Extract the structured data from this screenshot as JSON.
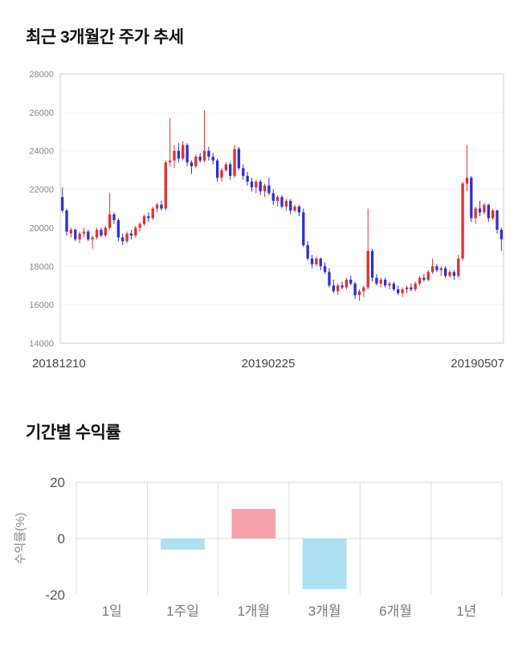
{
  "page": {
    "background": "#ffffff"
  },
  "chart_data": [
    {
      "type": "candlestick",
      "title": "최근 3개월간 주가 추세",
      "ylim": [
        14000,
        28000
      ],
      "y_ticks": [
        14000,
        16000,
        18000,
        20000,
        22000,
        24000,
        26000,
        28000
      ],
      "x_labels": [
        "20181210",
        "20190225",
        "20190507"
      ],
      "up_color": "#e03131",
      "down_color": "#2f2fd0",
      "grid": true,
      "ohlc": [
        [
          21600,
          22100,
          20800,
          20900
        ],
        [
          20900,
          21000,
          19600,
          19800
        ],
        [
          19700,
          20000,
          19500,
          19900
        ],
        [
          19900,
          19950,
          19300,
          19400
        ],
        [
          19400,
          19800,
          19200,
          19700
        ],
        [
          19700,
          20000,
          19500,
          19800
        ],
        [
          19800,
          19900,
          19300,
          19400
        ],
        [
          19400,
          19600,
          18900,
          19500
        ],
        [
          19500,
          20000,
          19400,
          19900
        ],
        [
          19900,
          20000,
          19500,
          19600
        ],
        [
          19600,
          20100,
          19500,
          20000
        ],
        [
          20000,
          21800,
          19900,
          20700
        ],
        [
          20700,
          20800,
          20200,
          20400
        ],
        [
          20400,
          20500,
          19300,
          19500
        ],
        [
          19500,
          19700,
          19100,
          19300
        ],
        [
          19300,
          19800,
          19200,
          19700
        ],
        [
          19700,
          19900,
          19400,
          19600
        ],
        [
          19600,
          20100,
          19500,
          20000
        ],
        [
          20000,
          20300,
          19800,
          20200
        ],
        [
          20200,
          20700,
          20100,
          20600
        ],
        [
          20600,
          20800,
          20300,
          20500
        ],
        [
          20500,
          21100,
          20400,
          21000
        ],
        [
          21000,
          21300,
          20800,
          21200
        ],
        [
          21200,
          21400,
          20900,
          21000
        ],
        [
          21000,
          23500,
          20900,
          23400
        ],
        [
          23400,
          25700,
          23200,
          23500
        ],
        [
          23500,
          24300,
          23100,
          24000
        ],
        [
          24000,
          24400,
          23400,
          23600
        ],
        [
          23600,
          24500,
          23500,
          24300
        ],
        [
          24300,
          24400,
          23200,
          23400
        ],
        [
          23400,
          23500,
          22800,
          23200
        ],
        [
          23200,
          23800,
          23100,
          23700
        ],
        [
          23700,
          23900,
          23400,
          23500
        ],
        [
          23500,
          26100,
          23400,
          24000
        ],
        [
          24000,
          24200,
          23500,
          23700
        ],
        [
          23700,
          23900,
          23300,
          23500
        ],
        [
          23500,
          23600,
          22400,
          22600
        ],
        [
          22600,
          23100,
          22400,
          23000
        ],
        [
          23000,
          23400,
          22900,
          23300
        ],
        [
          23300,
          23400,
          22500,
          22700
        ],
        [
          22700,
          24300,
          22600,
          24100
        ],
        [
          24100,
          24200,
          23000,
          23100
        ],
        [
          23100,
          23300,
          22500,
          22700
        ],
        [
          22700,
          22900,
          22200,
          22400
        ],
        [
          22400,
          22600,
          21900,
          22100
        ],
        [
          22100,
          22500,
          21800,
          22400
        ],
        [
          22400,
          22500,
          21700,
          21900
        ],
        [
          21900,
          22300,
          21600,
          22200
        ],
        [
          22200,
          22600,
          21700,
          21800
        ],
        [
          21800,
          22000,
          21200,
          21400
        ],
        [
          21400,
          21700,
          21100,
          21600
        ],
        [
          21600,
          21700,
          21000,
          21100
        ],
        [
          21100,
          21500,
          20900,
          21400
        ],
        [
          21400,
          21500,
          20700,
          20900
        ],
        [
          20900,
          21200,
          20800,
          21100
        ],
        [
          21100,
          21200,
          20600,
          20800
        ],
        [
          20800,
          21000,
          19000,
          19100
        ],
        [
          19100,
          19300,
          18300,
          18400
        ],
        [
          18400,
          18600,
          17900,
          18100
        ],
        [
          18100,
          18500,
          18000,
          18400
        ],
        [
          18400,
          18450,
          17800,
          18000
        ],
        [
          18000,
          18200,
          17600,
          17700
        ],
        [
          17700,
          17900,
          16900,
          17000
        ],
        [
          17000,
          17300,
          16600,
          16700
        ],
        [
          16700,
          17100,
          16500,
          17000
        ],
        [
          17000,
          17200,
          16800,
          16900
        ],
        [
          16900,
          17400,
          16800,
          17300
        ],
        [
          17300,
          17500,
          17000,
          17100
        ],
        [
          17100,
          17200,
          16300,
          16500
        ],
        [
          16500,
          16800,
          16200,
          16700
        ],
        [
          16700,
          17000,
          16400,
          16900
        ],
        [
          16900,
          21000,
          16800,
          18800
        ],
        [
          18800,
          18900,
          17200,
          17400
        ],
        [
          17400,
          17600,
          17000,
          17100
        ],
        [
          17100,
          17400,
          16900,
          17300
        ],
        [
          17300,
          17400,
          16900,
          17000
        ],
        [
          17000,
          17200,
          16800,
          17100
        ],
        [
          17100,
          17200,
          16700,
          16800
        ],
        [
          16800,
          17000,
          16500,
          16600
        ],
        [
          16600,
          16900,
          16400,
          16800
        ],
        [
          16800,
          17000,
          16600,
          16900
        ],
        [
          16900,
          17100,
          16700,
          16800
        ],
        [
          16800,
          17200,
          16700,
          17100
        ],
        [
          17100,
          17500,
          17000,
          17400
        ],
        [
          17400,
          17600,
          17200,
          17300
        ],
        [
          17300,
          17800,
          17200,
          17700
        ],
        [
          17700,
          18400,
          17600,
          18000
        ],
        [
          18000,
          18100,
          17700,
          17800
        ],
        [
          17800,
          18000,
          17500,
          17900
        ],
        [
          17900,
          18000,
          17400,
          17500
        ],
        [
          17500,
          17800,
          17400,
          17700
        ],
        [
          17700,
          17800,
          17300,
          17500
        ],
        [
          17500,
          18600,
          17400,
          18400
        ],
        [
          18400,
          22400,
          18300,
          22300
        ],
        [
          22300,
          24300,
          21900,
          22600
        ],
        [
          22600,
          22700,
          20300,
          20500
        ],
        [
          20500,
          21100,
          20200,
          21000
        ],
        [
          21000,
          21400,
          20600,
          20800
        ],
        [
          20800,
          21300,
          20700,
          21200
        ],
        [
          21200,
          21250,
          20300,
          20500
        ],
        [
          20500,
          21000,
          20400,
          20900
        ],
        [
          20900,
          20950,
          19700,
          19900
        ],
        [
          19900,
          20000,
          18800,
          19400
        ]
      ]
    },
    {
      "type": "bar",
      "title": "기간별 수익률",
      "ylabel": "수익률(%)",
      "categories": [
        "1일",
        "1주일",
        "1개월",
        "3개월",
        "6개월",
        "1년"
      ],
      "values": [
        0,
        -4,
        10.5,
        -18,
        0,
        0
      ],
      "ylim": [
        -20,
        20
      ],
      "y_ticks": [
        20,
        0,
        -20
      ],
      "positive_color": "#f5a3a9",
      "negative_color": "#ade1f2",
      "grid": true,
      "legend": "none"
    }
  ]
}
